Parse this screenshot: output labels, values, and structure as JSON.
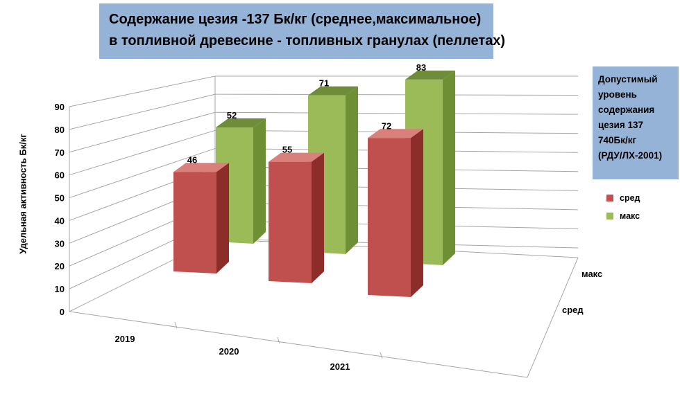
{
  "chart_data": {
    "type": "bar",
    "title_lines": [
      "Содержание цезия -137 Бк/кг (среднее,максимальное)",
      "в топливной древесине - топливных гранулах (пеллетах)"
    ],
    "ylabel": "Удельная активность Бк/кг",
    "xlabel": "",
    "categories": [
      "2019",
      "2020",
      "2021"
    ],
    "depth_categories": [
      "сред",
      "макс"
    ],
    "yticks": [
      "0",
      "10",
      "20",
      "30",
      "40",
      "50",
      "60",
      "70",
      "80",
      "90"
    ],
    "ylim": [
      0,
      90
    ],
    "grid": true,
    "series": [
      {
        "name": "сред",
        "values": [
          46,
          55,
          72
        ],
        "color": "#c0504d",
        "side": "#8c2d2a",
        "top": "#d9807d"
      },
      {
        "name": "макс",
        "values": [
          52,
          71,
          83
        ],
        "color": "#9bbb59",
        "side": "#6f8f35",
        "top": "#6e8c3a"
      }
    ],
    "data_labels": [
      "46",
      "55",
      "72",
      "52",
      "71",
      "83"
    ],
    "legend_position": "right"
  },
  "note": {
    "lines": [
      "Допустимый",
      "уровень",
      "содержания",
      "цезия 137",
      "740Бк/кг",
      "(РДУ/ЛХ-2001)"
    ],
    "color": "#95b3d7"
  }
}
